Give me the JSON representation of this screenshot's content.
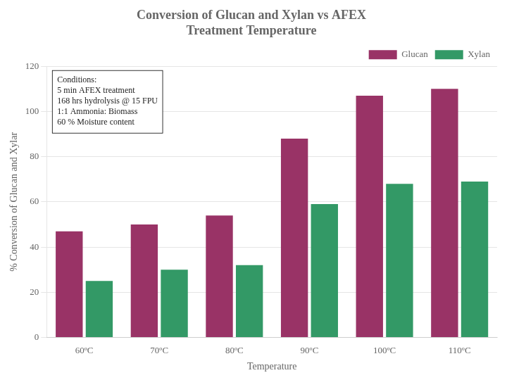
{
  "chart_data": {
    "type": "bar",
    "title": "Conversion of Glucan and Xylan vs AFEX\nTreatment Temperature",
    "xlabel": "Temperature",
    "ylabel": "% Conversion of Glucan and Xylar",
    "categories": [
      "60ºC",
      "70ºC",
      "80ºC",
      "90ºC",
      "100ºC",
      "110ºC"
    ],
    "series": [
      {
        "name": "Glucan",
        "color": "#993366",
        "values": [
          47,
          50,
          54,
          88,
          107,
          110
        ]
      },
      {
        "name": "Xylan",
        "color": "#339966",
        "values": [
          25,
          30,
          32,
          59,
          68,
          69
        ]
      }
    ],
    "ylim": [
      0,
      120
    ],
    "yticks": [
      0,
      20,
      40,
      60,
      80,
      100,
      120
    ],
    "grid": true,
    "legend": "top",
    "annotation": "Conditions:\n5 min AFEX treatment\n168 hrs hydrolysis @ 15 FPU\n1:1 Ammonia: Biomass\n60 % Moisture content"
  }
}
